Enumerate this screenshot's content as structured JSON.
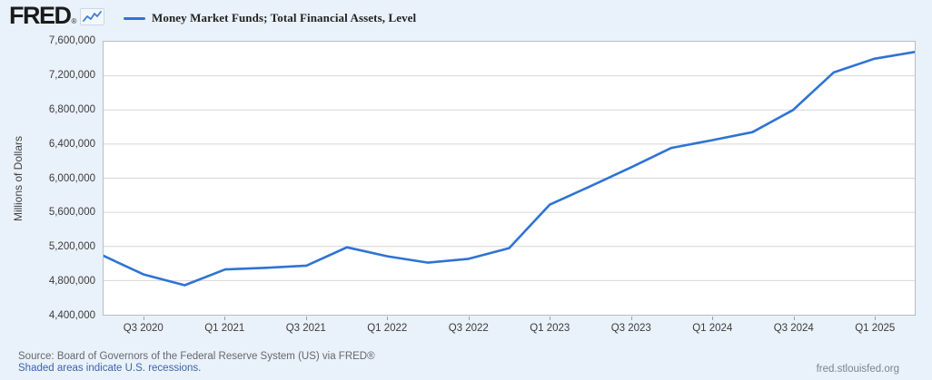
{
  "header": {
    "logo_text": "FRED",
    "logo_reg": "®",
    "legend_label": "Money Market Funds; Total Financial Assets, Level"
  },
  "chart_data": {
    "type": "line",
    "title": "Money Market Funds; Total Financial Assets, Level",
    "xlabel": "",
    "ylabel": "Millions of Dollars",
    "x_quarters": [
      "Q2 2020",
      "Q3 2020",
      "Q4 2020",
      "Q1 2021",
      "Q2 2021",
      "Q3 2021",
      "Q4 2021",
      "Q1 2022",
      "Q2 2022",
      "Q3 2022",
      "Q4 2022",
      "Q1 2023",
      "Q2 2023",
      "Q3 2023",
      "Q4 2023",
      "Q1 2024",
      "Q2 2024",
      "Q3 2024",
      "Q4 2024",
      "Q1 2025",
      "Q2 2025"
    ],
    "values": [
      5090000,
      4870000,
      4745000,
      4930000,
      4950000,
      4975000,
      5190000,
      5085000,
      5010000,
      5055000,
      5180000,
      5690000,
      5905000,
      6125000,
      6355000,
      6445000,
      6540000,
      6800000,
      7240000,
      7400000,
      7480000
    ],
    "x_tick_labels": [
      "Q3 2020",
      "Q1 2021",
      "Q3 2021",
      "Q1 2022",
      "Q3 2022",
      "Q1 2023",
      "Q3 2023",
      "Q1 2024",
      "Q3 2024",
      "Q1 2025"
    ],
    "x_tick_indices": [
      1,
      3,
      5,
      7,
      9,
      11,
      13,
      15,
      17,
      19
    ],
    "y_ticks": [
      4400000,
      4800000,
      5200000,
      5600000,
      6000000,
      6400000,
      6800000,
      7200000,
      7600000
    ],
    "y_tick_labels": [
      "4,400,000",
      "4,800,000",
      "5,200,000",
      "5,600,000",
      "6,000,000",
      "6,400,000",
      "6,800,000",
      "7,200,000",
      "7,600,000"
    ],
    "ylim": [
      4400000,
      7600000
    ],
    "grid": true,
    "legend_position": "top",
    "line_color": "#2f73d4",
    "grid_color": "#d6d6d6",
    "plot_bg": "#ffffff"
  },
  "footer": {
    "source_line": "Source: Board of Governors of the Federal Reserve System (US) via FRED®",
    "recession_note": "Shaded areas indicate U.S. recessions.",
    "site_url": "fred.stlouisfed.org"
  }
}
